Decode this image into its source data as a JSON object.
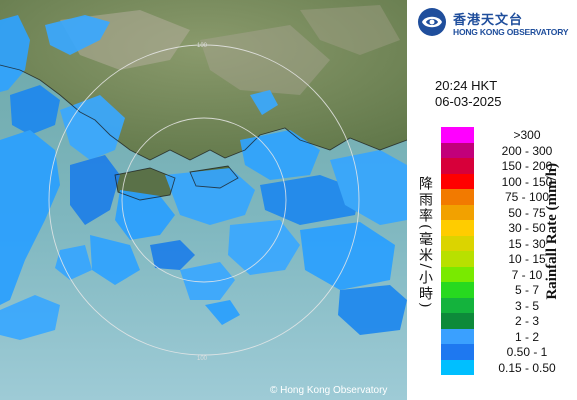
{
  "header": {
    "org_name_zh": "香港天文台",
    "org_name_en": "HONG KONG OBSERVATORY"
  },
  "timestamp": {
    "time": "20:24 HKT",
    "date": "06-03-2025"
  },
  "legend": {
    "title_zh": "降雨率(毫米/小時)",
    "title_en": "Rainfall Rate (mm/h)",
    "items": [
      {
        "label": ">300",
        "color": "#ff00ff"
      },
      {
        "label": "200 - 300",
        "color": "#c2007a"
      },
      {
        "label": "150 - 200",
        "color": "#d7003a"
      },
      {
        "label": "100 - 150",
        "color": "#ff0000"
      },
      {
        "label": "75 - 100",
        "color": "#f27a00"
      },
      {
        "label": "50 - 75",
        "color": "#f2a100"
      },
      {
        "label": "30 - 50",
        "color": "#ffcc00"
      },
      {
        "label": "15 - 30",
        "color": "#dbd400"
      },
      {
        "label": "10 - 15",
        "color": "#b8e000"
      },
      {
        "label": "7 - 10",
        "color": "#79ea00"
      },
      {
        "label": "5 - 7",
        "color": "#27d91f"
      },
      {
        "label": "3 - 5",
        "color": "#14b33d"
      },
      {
        "label": "2 - 3",
        "color": "#0d8a3a"
      },
      {
        "label": "1 - 2",
        "color": "#3aa0ff"
      },
      {
        "label": "0.50 - 1",
        "color": "#1e78f0"
      },
      {
        "label": "0.15 - 0.50",
        "color": "#00bfff"
      }
    ]
  },
  "map": {
    "range_labels": [
      "100",
      "100"
    ],
    "copyright": "© Hong Kong Observatory"
  }
}
